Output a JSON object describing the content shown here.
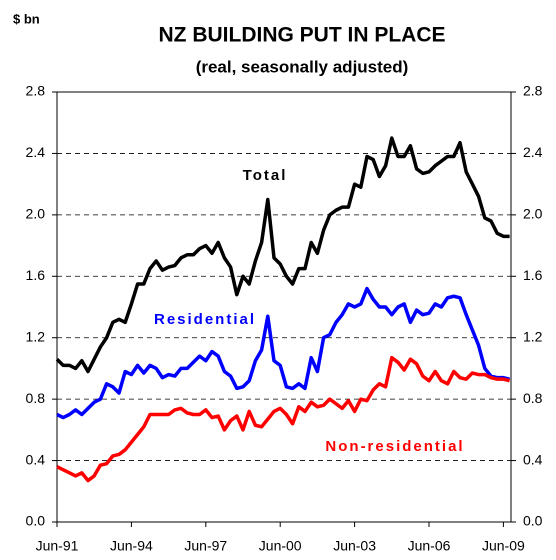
{
  "chart_data": {
    "type": "line",
    "title": "NZ BUILDING PUT IN PLACE",
    "subtitle": "(real, seasonally adjusted)",
    "y_label": "$ bn",
    "categories": [
      "Jun-91",
      null,
      null,
      null,
      null,
      null,
      null,
      null,
      null,
      null,
      null,
      null,
      "Jun-94",
      null,
      null,
      null,
      null,
      null,
      null,
      null,
      null,
      null,
      null,
      null,
      "Jun-97",
      null,
      null,
      null,
      null,
      null,
      null,
      null,
      null,
      null,
      null,
      null,
      "Jun-00",
      null,
      null,
      null,
      null,
      null,
      null,
      null,
      null,
      null,
      null,
      null,
      "Jun-03",
      null,
      null,
      null,
      null,
      null,
      null,
      null,
      null,
      null,
      null,
      null,
      "Jun-06",
      null,
      null,
      null,
      null,
      null,
      null,
      null,
      null,
      null,
      null,
      null,
      "Jun-09",
      null
    ],
    "series": [
      {
        "name": "Total",
        "color": "#000000",
        "values": [
          1.06,
          1.02,
          1.02,
          1.0,
          1.05,
          0.98,
          1.06,
          1.14,
          1.2,
          1.3,
          1.32,
          1.3,
          1.42,
          1.55,
          1.55,
          1.65,
          1.7,
          1.64,
          1.66,
          1.67,
          1.72,
          1.74,
          1.74,
          1.78,
          1.8,
          1.75,
          1.82,
          1.72,
          1.66,
          1.48,
          1.6,
          1.55,
          1.7,
          1.82,
          2.1,
          1.72,
          1.68,
          1.6,
          1.55,
          1.65,
          1.65,
          1.82,
          1.75,
          1.9,
          2.0,
          2.03,
          2.05,
          2.05,
          2.2,
          2.18,
          2.38,
          2.36,
          2.25,
          2.32,
          2.5,
          2.38,
          2.38,
          2.45,
          2.3,
          2.27,
          2.28,
          2.32,
          2.35,
          2.38,
          2.38,
          2.47,
          2.28,
          2.2,
          2.12,
          1.98,
          1.96,
          1.88,
          1.86,
          1.86
        ]
      },
      {
        "name": "Residential",
        "color": "#0000ff",
        "values": [
          0.7,
          0.68,
          0.7,
          0.73,
          0.7,
          0.74,
          0.78,
          0.8,
          0.9,
          0.88,
          0.84,
          0.98,
          0.96,
          1.02,
          0.97,
          1.02,
          1.0,
          0.94,
          0.96,
          0.95,
          1.0,
          1.0,
          1.04,
          1.08,
          1.05,
          1.11,
          1.08,
          0.98,
          0.95,
          0.87,
          0.88,
          0.92,
          1.05,
          1.12,
          1.34,
          1.05,
          1.02,
          0.88,
          0.87,
          0.9,
          0.87,
          1.07,
          0.98,
          1.2,
          1.22,
          1.3,
          1.35,
          1.42,
          1.4,
          1.42,
          1.52,
          1.45,
          1.4,
          1.4,
          1.35,
          1.4,
          1.42,
          1.3,
          1.38,
          1.35,
          1.36,
          1.42,
          1.4,
          1.46,
          1.47,
          1.46,
          1.35,
          1.25,
          1.15,
          1.0,
          0.95,
          0.94,
          0.94,
          0.93
        ]
      },
      {
        "name": "Non-residential",
        "color": "#ff0000",
        "values": [
          0.36,
          0.34,
          0.32,
          0.3,
          0.32,
          0.27,
          0.3,
          0.37,
          0.38,
          0.43,
          0.44,
          0.47,
          0.52,
          0.57,
          0.62,
          0.7,
          0.7,
          0.7,
          0.7,
          0.73,
          0.74,
          0.71,
          0.7,
          0.7,
          0.73,
          0.68,
          0.69,
          0.6,
          0.66,
          0.69,
          0.6,
          0.72,
          0.63,
          0.62,
          0.67,
          0.72,
          0.74,
          0.7,
          0.64,
          0.75,
          0.72,
          0.78,
          0.75,
          0.76,
          0.8,
          0.77,
          0.74,
          0.79,
          0.72,
          0.8,
          0.79,
          0.86,
          0.9,
          0.88,
          1.07,
          1.04,
          0.99,
          1.06,
          1.03,
          0.95,
          0.92,
          0.98,
          0.92,
          0.9,
          0.98,
          0.94,
          0.93,
          0.97,
          0.96,
          0.96,
          0.94,
          0.93,
          0.93,
          0.92
        ]
      }
    ],
    "ylim": [
      0.0,
      2.8
    ],
    "yticks": [
      {
        "value": 0,
        "label": "0.0"
      },
      0.4,
      0.8,
      1.2,
      1.6,
      {
        "value": 2,
        "label": "2.0"
      },
      2.4,
      2.8
    ],
    "grid": true
  }
}
